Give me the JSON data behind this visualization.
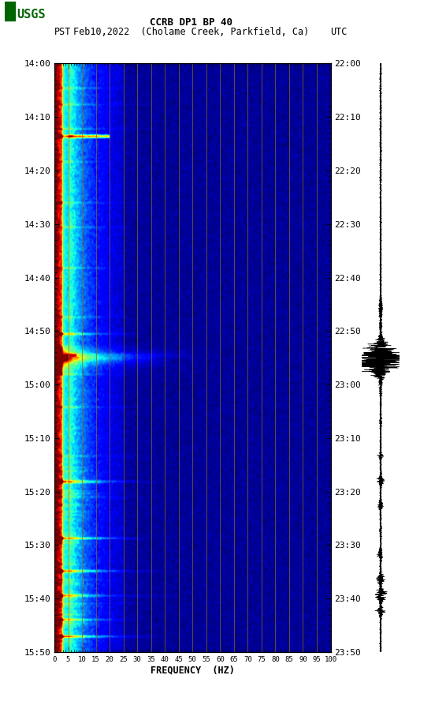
{
  "title_line1": "CCRB DP1 BP 40",
  "title_line2_left": "PST",
  "title_line2_mid": "Feb10,2022  (Cholame Creek, Parkfield, Ca)",
  "title_line2_right": "UTC",
  "xlabel": "FREQUENCY  (HZ)",
  "freq_ticks": [
    0,
    5,
    10,
    15,
    20,
    25,
    30,
    35,
    40,
    45,
    50,
    55,
    60,
    65,
    70,
    75,
    80,
    85,
    90,
    95,
    100
  ],
  "pst_ticks": [
    "14:00",
    "14:10",
    "14:20",
    "14:30",
    "14:40",
    "14:50",
    "15:00",
    "15:10",
    "15:20",
    "15:30",
    "15:40",
    "15:50"
  ],
  "utc_ticks": [
    "22:00",
    "22:10",
    "22:20",
    "22:30",
    "22:40",
    "22:50",
    "23:00",
    "23:10",
    "23:20",
    "23:30",
    "23:40",
    "23:50"
  ],
  "freq_min": 0,
  "freq_max": 100,
  "n_time": 720,
  "n_freq": 400,
  "background_color": "#ffffff",
  "vertical_line_color": "#8B6914",
  "vertical_line_positions": [
    5,
    10,
    15,
    20,
    25,
    30,
    35,
    40,
    45,
    50,
    55,
    60,
    65,
    70,
    75,
    80,
    85,
    90,
    95,
    100
  ],
  "logo_color": "#006400",
  "fig_width": 5.52,
  "fig_height": 8.93
}
